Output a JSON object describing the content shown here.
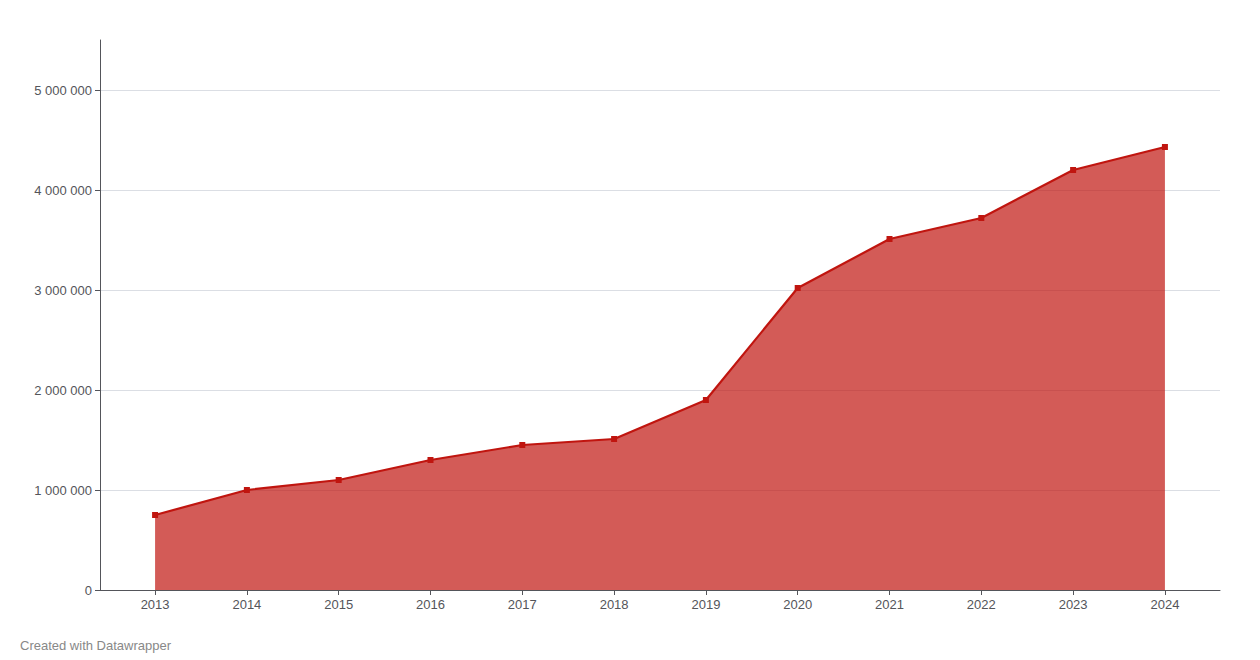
{
  "chart_data": {
    "type": "area",
    "x": [
      2013,
      2014,
      2015,
      2016,
      2017,
      2018,
      2019,
      2020,
      2021,
      2022,
      2023,
      2024
    ],
    "values": [
      750000,
      1000000,
      1100000,
      1300000,
      1450000,
      1510000,
      1900000,
      3020000,
      3510000,
      3720000,
      4200000,
      4430000
    ],
    "color": "#c0150f",
    "marker": "square",
    "xlim": [
      2012.4,
      2024.6
    ],
    "xticks": [
      2013,
      2014,
      2015,
      2016,
      2017,
      2018,
      2019,
      2020,
      2021,
      2022,
      2023,
      2024
    ],
    "ylim": [
      0,
      5500000
    ],
    "yticks": [
      0,
      {
        "value": 1000000,
        "label": "1 000 000"
      },
      {
        "value": 2000000,
        "label": "2 000 000"
      },
      {
        "value": 3000000,
        "label": "3 000 000"
      },
      {
        "value": 4000000,
        "label": "4 000 000"
      },
      {
        "value": 5000000,
        "label": "5 000 000"
      }
    ],
    "grid": true,
    "annotations": [
      "Created with Datawrapper"
    ]
  }
}
